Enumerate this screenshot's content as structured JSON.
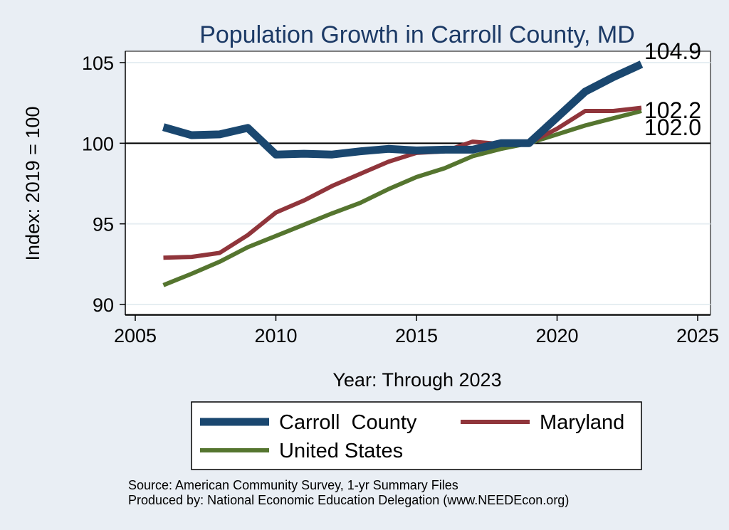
{
  "chart_data": {
    "type": "line",
    "title": "Population Growth in Carroll County, MD",
    "xlabel": "Year: Through 2023",
    "ylabel": "Index: 2019 = 100",
    "xlim": [
      2005,
      2025
    ],
    "ylim": [
      90,
      105
    ],
    "xticks": [
      "2005",
      "2010",
      "2015",
      "2020",
      "2025"
    ],
    "yticks": [
      "90",
      "95",
      "100",
      "105"
    ],
    "x": [
      2006,
      2007,
      2008,
      2009,
      2010,
      2011,
      2012,
      2013,
      2014,
      2015,
      2016,
      2017,
      2018,
      2019,
      2020,
      2021,
      2022,
      2023
    ],
    "reference_line": 100,
    "grid": true,
    "legend_position": "bottom",
    "series": [
      {
        "name": "Carroll  County",
        "color": "#1a476f",
        "values": [
          101.0,
          100.5,
          100.55,
          100.95,
          99.3,
          99.35,
          99.3,
          99.5,
          99.65,
          99.55,
          99.6,
          99.6,
          100.0,
          100.0,
          101.6,
          103.2,
          104.1,
          104.9
        ],
        "end_label": "104.9"
      },
      {
        "name": "Maryland",
        "color": "#90353b",
        "values": [
          92.9,
          92.95,
          93.2,
          94.3,
          95.7,
          96.45,
          97.35,
          98.1,
          98.85,
          99.4,
          99.5,
          100.1,
          99.95,
          100.0,
          100.9,
          102.0,
          102.0,
          102.2
        ],
        "end_label": "102.2"
      },
      {
        "name": "United States",
        "color": "#55752f",
        "values": [
          91.2,
          91.9,
          92.65,
          93.55,
          94.25,
          94.95,
          95.65,
          96.3,
          97.15,
          97.9,
          98.45,
          99.2,
          99.65,
          100.0,
          100.55,
          101.1,
          101.55,
          102.0
        ],
        "end_label": "102.0"
      }
    ],
    "source_lines": [
      "Source: American Community Survey, 1-yr Summary Files",
      "Produced by: National Economic Education Delegation (www.NEEDEcon.org)"
    ]
  }
}
